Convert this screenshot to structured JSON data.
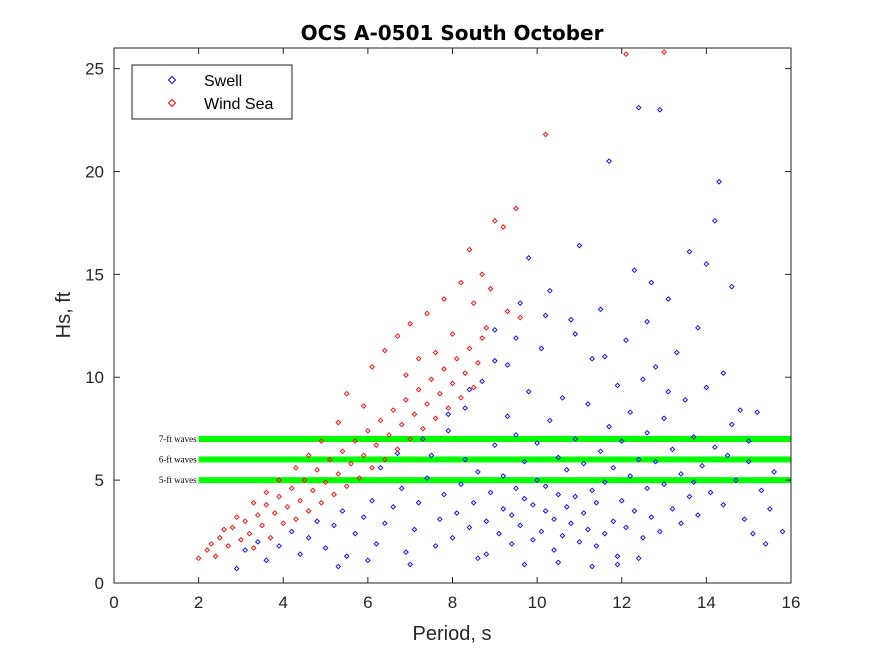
{
  "chart_data": {
    "type": "scatter",
    "title": "OCS A-0501 South October",
    "xlabel": "Period, s",
    "ylabel": "Hs, ft",
    "xlim": [
      0,
      16
    ],
    "ylim": [
      0,
      26
    ],
    "xticks": [
      "0",
      "2",
      "4",
      "6",
      "8",
      "10",
      "12",
      "14",
      "16"
    ],
    "yticks": [
      "0",
      "5",
      "10",
      "15",
      "20",
      "25"
    ],
    "grid": false,
    "legend_position": "top-left",
    "series": [
      {
        "name": "Swell",
        "color": "#0000ff",
        "marker": "diamond",
        "points": [
          [
            2.9,
            0.7
          ],
          [
            3.1,
            1.6
          ],
          [
            3.4,
            2.0
          ],
          [
            3.6,
            1.1
          ],
          [
            3.9,
            1.8
          ],
          [
            4.2,
            2.5
          ],
          [
            4.4,
            1.4
          ],
          [
            4.6,
            2.2
          ],
          [
            4.8,
            3.0
          ],
          [
            5.0,
            1.7
          ],
          [
            5.2,
            2.8
          ],
          [
            5.4,
            3.5
          ],
          [
            5.5,
            1.3
          ],
          [
            5.7,
            2.4
          ],
          [
            5.9,
            3.2
          ],
          [
            6.1,
            4.0
          ],
          [
            6.2,
            1.9
          ],
          [
            6.4,
            2.9
          ],
          [
            6.6,
            3.7
          ],
          [
            6.8,
            4.6
          ],
          [
            6.9,
            1.5
          ],
          [
            7.1,
            2.6
          ],
          [
            7.2,
            3.9
          ],
          [
            7.4,
            5.1
          ],
          [
            7.5,
            6.2
          ],
          [
            7.6,
            1.8
          ],
          [
            7.7,
            3.1
          ],
          [
            7.8,
            4.3
          ],
          [
            7.9,
            7.4
          ],
          [
            8.0,
            2.2
          ],
          [
            8.1,
            3.4
          ],
          [
            8.2,
            4.8
          ],
          [
            8.3,
            6.0
          ],
          [
            8.3,
            8.5
          ],
          [
            8.4,
            2.7
          ],
          [
            8.5,
            3.9
          ],
          [
            8.6,
            5.4
          ],
          [
            8.7,
            9.8
          ],
          [
            8.8,
            1.4
          ],
          [
            8.8,
            3.0
          ],
          [
            8.9,
            4.4
          ],
          [
            9.0,
            6.7
          ],
          [
            9.0,
            12.3
          ],
          [
            9.1,
            2.4
          ],
          [
            9.2,
            3.6
          ],
          [
            9.2,
            5.2
          ],
          [
            9.3,
            8.1
          ],
          [
            9.3,
            10.6
          ],
          [
            9.4,
            1.9
          ],
          [
            9.4,
            3.3
          ],
          [
            9.5,
            4.6
          ],
          [
            9.5,
            7.2
          ],
          [
            9.6,
            13.6
          ],
          [
            9.6,
            2.8
          ],
          [
            9.7,
            4.1
          ],
          [
            9.7,
            5.9
          ],
          [
            9.8,
            9.3
          ],
          [
            9.8,
            15.8
          ],
          [
            9.9,
            2.1
          ],
          [
            9.9,
            3.8
          ],
          [
            10.0,
            5.0
          ],
          [
            10.0,
            6.8
          ],
          [
            10.1,
            11.4
          ],
          [
            10.1,
            2.5
          ],
          [
            10.2,
            3.5
          ],
          [
            10.2,
            4.7
          ],
          [
            10.3,
            7.9
          ],
          [
            10.3,
            14.2
          ],
          [
            10.4,
            1.6
          ],
          [
            10.4,
            3.1
          ],
          [
            10.5,
            4.3
          ],
          [
            10.5,
            6.1
          ],
          [
            10.6,
            9.0
          ],
          [
            10.6,
            2.3
          ],
          [
            10.7,
            3.7
          ],
          [
            10.7,
            5.5
          ],
          [
            10.8,
            12.8
          ],
          [
            10.8,
            2.9
          ],
          [
            10.9,
            4.2
          ],
          [
            10.9,
            7.0
          ],
          [
            11.0,
            16.4
          ],
          [
            11.0,
            2.0
          ],
          [
            11.1,
            3.4
          ],
          [
            11.1,
            5.8
          ],
          [
            11.2,
            8.7
          ],
          [
            11.2,
            2.6
          ],
          [
            11.3,
            4.5
          ],
          [
            11.3,
            10.9
          ],
          [
            11.4,
            1.8
          ],
          [
            11.4,
            3.9
          ],
          [
            11.5,
            6.4
          ],
          [
            11.5,
            13.3
          ],
          [
            11.6,
            2.4
          ],
          [
            11.6,
            4.9
          ],
          [
            11.7,
            7.6
          ],
          [
            11.7,
            20.5
          ],
          [
            11.8,
            3.0
          ],
          [
            11.8,
            5.6
          ],
          [
            11.9,
            9.6
          ],
          [
            11.9,
            1.3
          ],
          [
            12.0,
            4.0
          ],
          [
            12.0,
            6.9
          ],
          [
            12.1,
            11.8
          ],
          [
            12.1,
            2.7
          ],
          [
            12.2,
            5.2
          ],
          [
            12.2,
            8.3
          ],
          [
            12.3,
            15.2
          ],
          [
            12.3,
            3.5
          ],
          [
            12.4,
            23.1
          ],
          [
            12.4,
            6.0
          ],
          [
            12.5,
            9.9
          ],
          [
            12.5,
            2.2
          ],
          [
            12.6,
            4.6
          ],
          [
            12.6,
            7.3
          ],
          [
            12.7,
            14.6
          ],
          [
            12.7,
            3.2
          ],
          [
            12.8,
            5.9
          ],
          [
            12.8,
            10.5
          ],
          [
            12.9,
            23.0
          ],
          [
            12.9,
            2.5
          ],
          [
            13.0,
            4.8
          ],
          [
            13.0,
            8.0
          ],
          [
            13.1,
            13.8
          ],
          [
            13.2,
            3.6
          ],
          [
            13.2,
            6.5
          ],
          [
            13.3,
            11.2
          ],
          [
            13.4,
            2.9
          ],
          [
            13.4,
            5.3
          ],
          [
            13.5,
            8.9
          ],
          [
            13.6,
            16.1
          ],
          [
            13.6,
            4.2
          ],
          [
            13.7,
            7.1
          ],
          [
            13.8,
            12.4
          ],
          [
            13.8,
            3.3
          ],
          [
            13.9,
            5.7
          ],
          [
            14.0,
            9.5
          ],
          [
            14.0,
            15.5
          ],
          [
            14.1,
            4.4
          ],
          [
            14.2,
            17.6
          ],
          [
            14.2,
            6.6
          ],
          [
            14.3,
            19.5
          ],
          [
            14.4,
            10.2
          ],
          [
            14.4,
            3.8
          ],
          [
            14.5,
            6.2
          ],
          [
            14.6,
            14.4
          ],
          [
            14.7,
            5.0
          ],
          [
            14.8,
            8.4
          ],
          [
            14.9,
            3.1
          ],
          [
            15.0,
            6.9
          ],
          [
            15.1,
            2.4
          ],
          [
            15.2,
            8.3
          ],
          [
            15.3,
            4.5
          ],
          [
            15.4,
            1.9
          ],
          [
            15.5,
            3.6
          ],
          [
            15.6,
            5.4
          ],
          [
            15.8,
            2.5
          ],
          [
            5.3,
            0.8
          ],
          [
            6.0,
            1.1
          ],
          [
            7.0,
            0.9
          ],
          [
            8.6,
            1.2
          ],
          [
            9.7,
            0.9
          ],
          [
            10.5,
            1.0
          ],
          [
            11.3,
            0.8
          ],
          [
            11.9,
            0.9
          ],
          [
            12.4,
            1.2
          ],
          [
            6.3,
            5.6
          ],
          [
            6.7,
            6.3
          ],
          [
            7.3,
            7.0
          ],
          [
            7.9,
            8.2
          ],
          [
            8.4,
            9.4
          ],
          [
            9.0,
            10.8
          ],
          [
            9.5,
            11.9
          ],
          [
            10.2,
            13.0
          ],
          [
            10.9,
            12.1
          ],
          [
            11.6,
            11.0
          ],
          [
            12.6,
            12.7
          ],
          [
            13.1,
            9.3
          ],
          [
            14.6,
            7.7
          ],
          [
            15.0,
            5.9
          ],
          [
            13.7,
            4.9
          ]
        ]
      },
      {
        "name": "Wind Sea",
        "color": "#ff0000",
        "marker": "diamond",
        "points": [
          [
            2.0,
            1.2
          ],
          [
            2.2,
            1.6
          ],
          [
            2.4,
            1.3
          ],
          [
            2.5,
            2.2
          ],
          [
            2.7,
            1.8
          ],
          [
            2.8,
            2.7
          ],
          [
            3.0,
            2.1
          ],
          [
            3.1,
            3.0
          ],
          [
            3.2,
            2.4
          ],
          [
            3.3,
            1.7
          ],
          [
            3.4,
            3.3
          ],
          [
            3.5,
            2.8
          ],
          [
            3.6,
            3.8
          ],
          [
            3.7,
            2.2
          ],
          [
            3.8,
            3.4
          ],
          [
            3.9,
            4.2
          ],
          [
            4.0,
            2.9
          ],
          [
            4.1,
            3.7
          ],
          [
            4.2,
            4.6
          ],
          [
            4.3,
            3.1
          ],
          [
            4.4,
            4.0
          ],
          [
            4.5,
            5.0
          ],
          [
            4.6,
            3.5
          ],
          [
            4.7,
            4.5
          ],
          [
            4.8,
            5.5
          ],
          [
            4.9,
            3.9
          ],
          [
            5.0,
            4.9
          ],
          [
            5.1,
            6.0
          ],
          [
            5.2,
            4.3
          ],
          [
            5.3,
            5.3
          ],
          [
            5.4,
            6.4
          ],
          [
            5.5,
            4.7
          ],
          [
            5.6,
            5.8
          ],
          [
            5.7,
            6.9
          ],
          [
            5.8,
            5.1
          ],
          [
            5.9,
            6.2
          ],
          [
            6.0,
            7.4
          ],
          [
            6.1,
            5.6
          ],
          [
            6.2,
            6.7
          ],
          [
            6.3,
            7.9
          ],
          [
            6.4,
            6.0
          ],
          [
            6.5,
            7.2
          ],
          [
            6.6,
            8.4
          ],
          [
            6.7,
            6.5
          ],
          [
            6.8,
            7.7
          ],
          [
            6.9,
            8.9
          ],
          [
            7.0,
            7.0
          ],
          [
            7.1,
            8.2
          ],
          [
            7.2,
            9.4
          ],
          [
            7.3,
            7.5
          ],
          [
            7.4,
            8.7
          ],
          [
            7.5,
            9.9
          ],
          [
            7.6,
            8.0
          ],
          [
            7.7,
            9.2
          ],
          [
            7.8,
            10.4
          ],
          [
            7.9,
            8.5
          ],
          [
            8.0,
            9.7
          ],
          [
            8.1,
            10.9
          ],
          [
            8.2,
            9.0
          ],
          [
            8.3,
            10.2
          ],
          [
            8.4,
            11.4
          ],
          [
            8.5,
            9.5
          ],
          [
            8.6,
            10.7
          ],
          [
            8.7,
            11.9
          ],
          [
            8.8,
            12.4
          ],
          [
            6.1,
            10.5
          ],
          [
            6.4,
            11.3
          ],
          [
            6.7,
            12.0
          ],
          [
            7.0,
            12.6
          ],
          [
            7.4,
            13.1
          ],
          [
            7.8,
            13.8
          ],
          [
            8.2,
            14.6
          ],
          [
            8.4,
            16.2
          ],
          [
            8.7,
            15.0
          ],
          [
            9.0,
            17.6
          ],
          [
            9.2,
            17.3
          ],
          [
            9.5,
            18.2
          ],
          [
            9.3,
            13.2
          ],
          [
            9.6,
            12.9
          ],
          [
            10.2,
            21.8
          ],
          [
            12.1,
            25.7
          ],
          [
            13.0,
            25.8
          ],
          [
            5.5,
            9.2
          ],
          [
            5.9,
            8.6
          ],
          [
            5.3,
            7.8
          ],
          [
            4.9,
            6.9
          ],
          [
            4.6,
            6.2
          ],
          [
            4.3,
            5.6
          ],
          [
            3.9,
            5.0
          ],
          [
            3.6,
            4.4
          ],
          [
            3.3,
            3.9
          ],
          [
            2.9,
            3.2
          ],
          [
            2.6,
            2.6
          ],
          [
            2.3,
            1.9
          ],
          [
            7.6,
            11.2
          ],
          [
            8.0,
            12.1
          ],
          [
            8.5,
            13.6
          ],
          [
            8.9,
            14.3
          ],
          [
            6.9,
            10.1
          ],
          [
            7.2,
            10.9
          ]
        ]
      }
    ],
    "reference_lines": [
      {
        "y": 7,
        "label": "7-ft waves",
        "color": "#00ff00"
      },
      {
        "y": 6,
        "label": "6-ft waves",
        "color": "#00ff00"
      },
      {
        "y": 5,
        "label": "5-ft waves",
        "color": "#00ff00"
      }
    ],
    "reference_line_x_start": 2
  }
}
